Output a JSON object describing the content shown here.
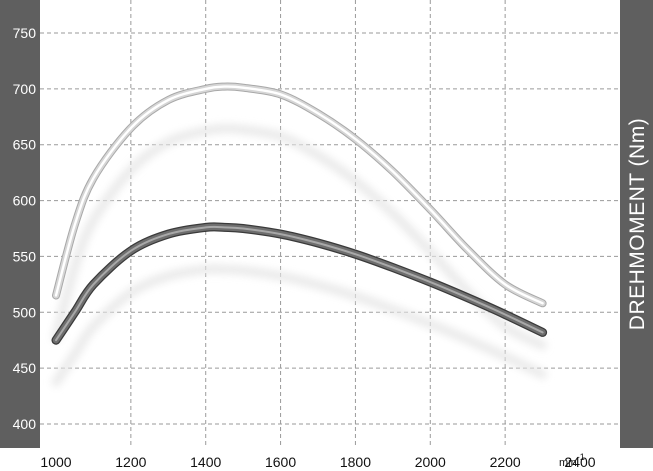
{
  "chart_data": {
    "type": "line",
    "title": "",
    "ylabel": "DREHMOMENT  (Nm)",
    "xlabel_unit": "min",
    "xlabel_unit_exponent": "-1",
    "xlim": [
      1000,
      2400
    ],
    "ylim": [
      385,
      765
    ],
    "x_ticks": [
      "1000",
      "1200",
      "1400",
      "1600",
      "1800",
      "2000",
      "2200",
      "2400"
    ],
    "y_ticks": [
      "400",
      "450",
      "500",
      "550",
      "600",
      "650",
      "700",
      "750"
    ],
    "grid": true,
    "colors": {
      "upper": "#d2d2d2",
      "lower": "#6a6a6a",
      "sidebar": "#5f5f5f"
    },
    "series": [
      {
        "x": [
          1000,
          1050,
          1100,
          1200,
          1300,
          1400,
          1450,
          1500,
          1600,
          1700,
          1800,
          1900,
          2000,
          2100,
          2200,
          2300
        ],
        "values": [
          515,
          578,
          620,
          665,
          690,
          700,
          702,
          701,
          695,
          678,
          655,
          626,
          592,
          556,
          525,
          508
        ]
      },
      {
        "x": [
          1000,
          1050,
          1100,
          1200,
          1300,
          1400,
          1450,
          1500,
          1600,
          1700,
          1800,
          1900,
          2000,
          2100,
          2200,
          2300
        ],
        "values": [
          475,
          500,
          525,
          555,
          570,
          576,
          576,
          575,
          570,
          562,
          552,
          540,
          527,
          513,
          498,
          482
        ]
      }
    ]
  }
}
